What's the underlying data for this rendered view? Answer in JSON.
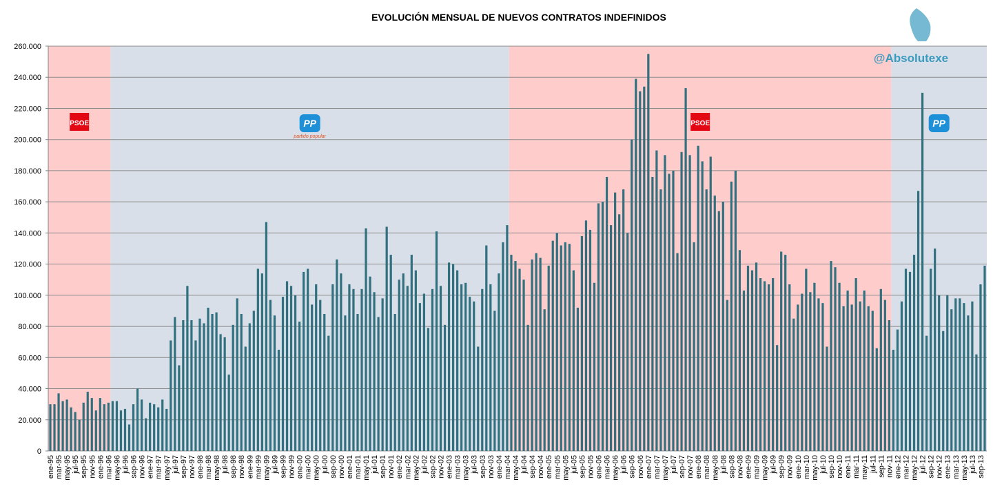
{
  "chart_data": {
    "type": "bar",
    "title": "EVOLUCIÓN MENSUAL DE NUEVOS CONTRATOS INDEFINIDOS",
    "watermark": "@Absolutexe",
    "color": "#31707f",
    "grid": true,
    "ylim": [
      0,
      260000
    ],
    "yticks": [
      0,
      {
        "value": 20000,
        "label": "20.000"
      },
      {
        "value": 40000,
        "label": "40.000"
      },
      {
        "value": 60000,
        "label": "60.000"
      },
      {
        "value": 80000,
        "label": "80.000"
      },
      {
        "value": 100000,
        "label": "100.000"
      },
      {
        "value": 120000,
        "label": "120.000"
      },
      {
        "value": 140000,
        "label": "140.000"
      },
      {
        "value": 160000,
        "label": "160.000"
      },
      {
        "value": 180000,
        "label": "180.000"
      },
      {
        "value": 200000,
        "label": "200.000"
      },
      {
        "value": 220000,
        "label": "220.000"
      },
      {
        "value": 240000,
        "label": "240.000"
      },
      {
        "value": 260000,
        "label": "260.000"
      }
    ],
    "governments": [
      {
        "logo_text": "PSOE",
        "from": "ene-95",
        "to": "mar-96",
        "color": "#ffcccc"
      },
      {
        "logo_text": "PP",
        "logo_subtext": "partido popular",
        "from": "mar-96",
        "to": "mar-04",
        "color": "#d9dfe8"
      },
      {
        "logo_text": "PSOE",
        "from": "mar-04",
        "to": "nov-11",
        "color": "#ffcccc"
      },
      {
        "logo_text": "PP",
        "from": "nov-11",
        "to": "sep-13",
        "color": "#d9dfe8"
      }
    ],
    "categories": [
      "ene-95",
      null,
      "mar-95",
      null,
      "may-95",
      null,
      "jul-95",
      null,
      "sep-95",
      null,
      "nov-95",
      null,
      "ene-96",
      null,
      "mar-96",
      null,
      "may-96",
      null,
      "jul-96",
      null,
      "sep-96",
      null,
      "nov-96",
      null,
      "ene-97",
      null,
      "mar-97",
      null,
      "may-97",
      null,
      "jul-97",
      null,
      "sep-97",
      null,
      "nov-97",
      null,
      "ene-98",
      null,
      "mar-98",
      null,
      "may-98",
      null,
      "jul-98",
      null,
      "sep-98",
      null,
      "nov-98",
      null,
      "ene-99",
      null,
      "mar-99",
      null,
      "may-99",
      null,
      "jul-99",
      null,
      "sep-99",
      null,
      "nov-99",
      null,
      "ene-00",
      null,
      "mar-00",
      null,
      "may-00",
      null,
      "jul-00",
      null,
      "sep-00",
      null,
      "nov-00",
      null,
      "ene-01",
      null,
      "mar-01",
      null,
      "may-01",
      null,
      "jul-01",
      null,
      "sep-01",
      null,
      "nov-01",
      null,
      "ene-02",
      null,
      "mar-02",
      null,
      "may-02",
      null,
      "jul-02",
      null,
      "sep-02",
      null,
      "nov-02",
      null,
      "ene-03",
      null,
      "mar-03",
      null,
      "may-03",
      null,
      "jul-03",
      null,
      "sep-03",
      null,
      "nov-03",
      null,
      "ene-04",
      null,
      "mar-04",
      null,
      "may-04",
      null,
      "jul-04",
      null,
      "sep-04",
      null,
      "nov-04",
      null,
      "ene-05",
      null,
      "mar-05",
      null,
      "may-05",
      null,
      "jul-05",
      null,
      "sep-05",
      null,
      "nov-05",
      null,
      "ene-06",
      null,
      "mar-06",
      null,
      "may-06",
      null,
      "jul-06",
      null,
      "sep-06",
      null,
      "nov-06",
      null,
      "ene-07",
      null,
      "mar-07",
      null,
      "may-07",
      null,
      "jul-07",
      null,
      "sep-07",
      null,
      "nov-07",
      null,
      "ene-08",
      null,
      "mar-08",
      null,
      "may-08",
      null,
      "jul-08",
      null,
      "sep-08",
      null,
      "nov-08",
      null,
      "ene-09",
      null,
      "mar-09",
      null,
      "may-09",
      null,
      "jul-09",
      null,
      "sep-09",
      null,
      "nov-09",
      null,
      "ene-10",
      null,
      "mar-10",
      null,
      "may-10",
      null,
      "jul-10",
      null,
      "sep-10",
      null,
      "nov-10",
      null,
      "ene-11",
      null,
      "mar-11",
      null,
      "may-11",
      null,
      "jul-11",
      null,
      "sep-11",
      null,
      "nov-11",
      null,
      "ene-12",
      null,
      "mar-12",
      null,
      "may-12",
      null,
      "jul-12",
      null,
      "sep-12",
      null,
      "nov-12",
      null,
      "ene-13",
      null,
      "mar-13",
      null,
      "may-13",
      null,
      "jul-13",
      null,
      "sep-13",
      null
    ],
    "values": [
      30000,
      30000,
      37000,
      32000,
      33000,
      28000,
      25000,
      20000,
      31000,
      38000,
      34000,
      26000,
      34000,
      30000,
      31000,
      32000,
      32000,
      26000,
      27000,
      17000,
      30000,
      40000,
      33000,
      21000,
      31000,
      30000,
      28000,
      33000,
      27000,
      71000,
      86000,
      55000,
      84000,
      106000,
      84000,
      71000,
      85000,
      82000,
      92000,
      88000,
      89000,
      75000,
      73000,
      49000,
      81000,
      98000,
      88000,
      67000,
      82000,
      90000,
      117000,
      114000,
      147000,
      97000,
      87000,
      65000,
      99000,
      109000,
      106000,
      100000,
      83000,
      115000,
      117000,
      94000,
      107000,
      97000,
      88000,
      74000,
      107000,
      123000,
      114000,
      87000,
      107000,
      104000,
      88000,
      104000,
      143000,
      112000,
      102000,
      86000,
      98000,
      144000,
      126000,
      88000,
      110000,
      114000,
      106000,
      126000,
      116000,
      95000,
      101000,
      79000,
      104000,
      141000,
      106000,
      81000,
      121000,
      120000,
      116000,
      107000,
      108000,
      99000,
      96000,
      67000,
      104000,
      132000,
      107000,
      90000,
      114000,
      134000,
      145000,
      126000,
      122000,
      117000,
      110000,
      81000,
      123000,
      127000,
      124000,
      91000,
      119000,
      135000,
      140000,
      132000,
      134000,
      133000,
      116000,
      92000,
      138000,
      148000,
      142000,
      108000,
      159000,
      160000,
      176000,
      145000,
      166000,
      152000,
      168000,
      140000,
      200000,
      239000,
      231000,
      234000,
      255000,
      176000,
      193000,
      168000,
      190000,
      178000,
      180000,
      127000,
      192000,
      233000,
      190000,
      134000,
      196000,
      186000,
      168000,
      189000,
      164000,
      154000,
      160000,
      97000,
      173000,
      180000,
      129000,
      103000,
      119000,
      116000,
      121000,
      111000,
      109000,
      107000,
      111000,
      68000,
      128000,
      126000,
      107000,
      85000,
      94000,
      101000,
      117000,
      102000,
      108000,
      98000,
      95000,
      67000,
      122000,
      118000,
      108000,
      93000,
      103000,
      94000,
      111000,
      96000,
      103000,
      93000,
      90000,
      66000,
      104000,
      97000,
      84000,
      65000,
      78000,
      96000,
      117000,
      115000,
      126000,
      167000,
      230000,
      74000,
      117000,
      130000,
      100000,
      77000,
      100000,
      91000,
      98000,
      98000,
      95000,
      87000,
      96000,
      62000,
      107000,
      119000
    ]
  }
}
